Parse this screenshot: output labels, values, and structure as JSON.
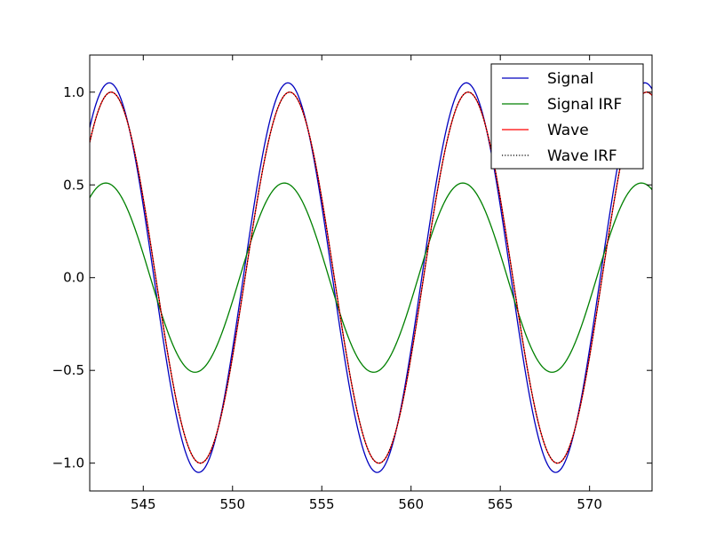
{
  "chart_data": {
    "type": "line",
    "title": "",
    "xlabel": "",
    "ylabel": "",
    "xlim": [
      542,
      573.5
    ],
    "ylim": [
      -1.15,
      1.2
    ],
    "grid": false,
    "legend": {
      "placement": "top-right"
    },
    "x_ticks": [
      545,
      550,
      555,
      560,
      565,
      570
    ],
    "y_ticks": [
      -1.0,
      -0.5,
      0.0,
      0.5,
      1.0
    ],
    "x_tick_labels": [
      "545",
      "550",
      "555",
      "560",
      "565",
      "570"
    ],
    "y_tick_labels": [
      "−1.0",
      "−0.5",
      "0.0",
      "0.5",
      "1.0"
    ],
    "series": [
      {
        "name": "Signal",
        "color": "#0000bf",
        "style": "solid",
        "amplitude": 1.05,
        "period": 10,
        "peak_x": 543.1
      },
      {
        "name": "Signal IRF",
        "color": "#008000",
        "style": "solid",
        "amplitude": 0.51,
        "period": 10,
        "peak_x": 542.9
      },
      {
        "name": "Wave",
        "color": "#ff0000",
        "style": "solid",
        "amplitude": 1.0,
        "period": 10,
        "peak_x": 543.2
      },
      {
        "name": "Wave IRF",
        "color": "#000000",
        "style": "dotted",
        "amplitude": 1.0,
        "period": 10,
        "peak_x": 543.2
      }
    ]
  }
}
